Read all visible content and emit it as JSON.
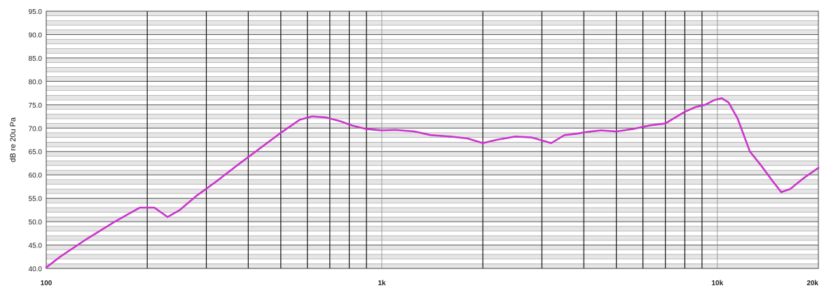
{
  "chart_data": {
    "type": "line",
    "title": "",
    "ylabel": "dB re 20u Pa",
    "xlabel": "",
    "x_scale": "log",
    "xlim": [
      100,
      20000
    ],
    "ylim": [
      40,
      95
    ],
    "grid": true,
    "y_ticks": [
      "40.0",
      "45.0",
      "50.0",
      "55.0",
      "60.0",
      "65.0",
      "70.0",
      "75.0",
      "80.0",
      "85.0",
      "90.0",
      "95.0"
    ],
    "y_tick_values": [
      40,
      45,
      50,
      55,
      60,
      65,
      70,
      75,
      80,
      85,
      90,
      95
    ],
    "x_tick_labels": [
      {
        "value": 100,
        "label": "100"
      },
      {
        "value": 1000,
        "label": "1k"
      },
      {
        "value": 10000,
        "label": "10k"
      },
      {
        "value": 20000,
        "label": "20k"
      }
    ],
    "series": [
      {
        "color": "#cc33cc",
        "x": [
          100,
          110,
          130,
          160,
          190,
          210,
          230,
          250,
          280,
          320,
          370,
          430,
          500,
          570,
          620,
          680,
          750,
          820,
          900,
          1000,
          1100,
          1250,
          1400,
          1600,
          1800,
          2000,
          2200,
          2500,
          2800,
          3200,
          3500,
          3800,
          4100,
          4500,
          5000,
          5600,
          6300,
          7000,
          7500,
          8000,
          8600,
          9200,
          9800,
          10300,
          10800,
          11500,
          12500,
          13500,
          14500,
          15500,
          16500,
          18000,
          20000
        ],
        "y": [
          40.2,
          42.5,
          46,
          50,
          53,
          53,
          51,
          52.5,
          55.5,
          58.5,
          62,
          65.5,
          69,
          71.8,
          72.5,
          72.3,
          71.5,
          70.5,
          69.8,
          69.5,
          69.6,
          69.3,
          68.5,
          68.2,
          67.8,
          66.8,
          67.5,
          68.2,
          68,
          66.8,
          68.5,
          68.8,
          69.2,
          69.5,
          69.3,
          69.8,
          70.6,
          71,
          72.3,
          73.5,
          74.5,
          75,
          76,
          76.4,
          75.5,
          72,
          65,
          62,
          59,
          56.3,
          57,
          59.2,
          61.5
        ]
      }
    ]
  }
}
